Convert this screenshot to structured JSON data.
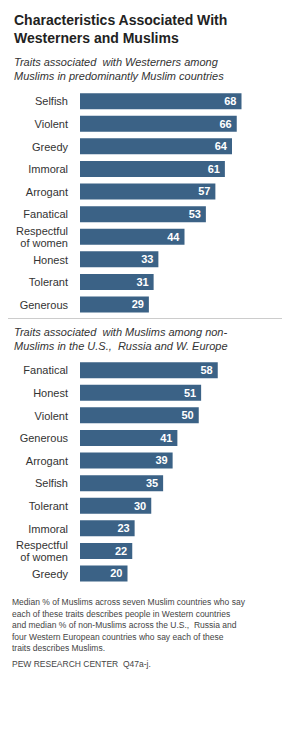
{
  "chart_data": [
    {
      "type": "bar",
      "title": "Characteristics Associated With\nWesterners and Muslims",
      "subtitle": "Traits associated  with Westerners among\nMuslims in predominantly Muslim countries",
      "categories": [
        "Selfish",
        "Violent",
        "Greedy",
        "Immoral",
        "Arrogant",
        "Fanatical",
        "Respectful\nof women",
        "Honest",
        "Tolerant",
        "Generous"
      ],
      "values": [
        68,
        66,
        64,
        61,
        57,
        53,
        44,
        33,
        31,
        29
      ],
      "color": "#3b6286",
      "orientation": "horizontal",
      "data_labels": true,
      "tick_labels": "y",
      "xlim": [
        0,
        80
      ],
      "grid": false
    },
    {
      "type": "bar",
      "subtitle": "Traits associated  with Muslims among non-\nMuslims in the U.S.,  Russia and W. Europe",
      "categories": [
        "Fanatical",
        "Honest",
        "Violent",
        "Generous",
        "Arrogant",
        "Selfish",
        "Tolerant",
        "Immoral",
        "Respectful\nof women",
        "Greedy"
      ],
      "values": [
        58,
        51,
        50,
        41,
        39,
        35,
        30,
        23,
        22,
        20
      ],
      "color": "#3b6286",
      "orientation": "horizontal",
      "data_labels": true,
      "tick_labels": "y",
      "xlim": [
        0,
        80
      ],
      "grid": false,
      "annotations": [
        "Median % of Muslims across seven Muslim countries who say\neach of these traits describes people in Western countries\nand median % of non-Muslims across the U.S.,  Russia and\nfour Western European countries who say each of these\ntraits describes Muslims.",
        "PEW RESEARCH CENTER  Q47a-j."
      ]
    }
  ]
}
